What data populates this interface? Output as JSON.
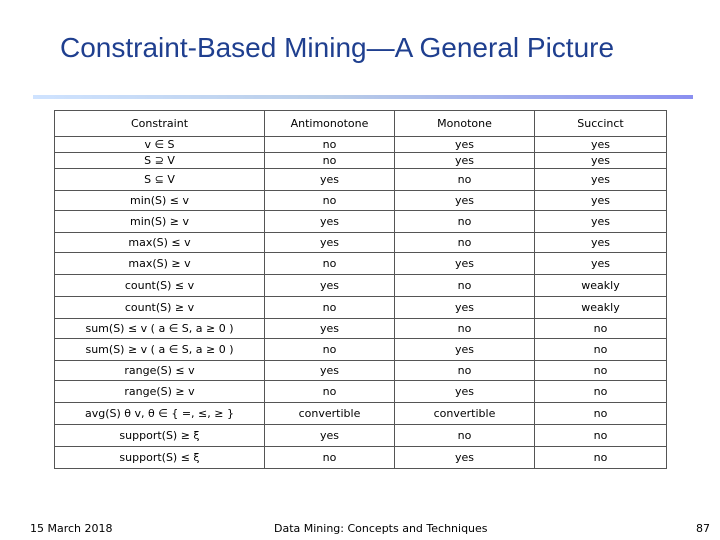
{
  "title": "Constraint-Based Mining—A General Picture",
  "table": {
    "headers": [
      "Constraint",
      "Antimonotone",
      "Monotone",
      "Succinct"
    ],
    "rows": [
      [
        "v ∈ S",
        "no",
        "yes",
        "yes"
      ],
      [
        "S ⊇ V",
        "no",
        "yes",
        "yes"
      ],
      [
        "S ⊆ V",
        "yes",
        "no",
        "yes"
      ],
      [
        "min(S) ≤ v",
        "no",
        "yes",
        "yes"
      ],
      [
        "min(S) ≥ v",
        "yes",
        "no",
        "yes"
      ],
      [
        "max(S) ≤ v",
        "yes",
        "no",
        "yes"
      ],
      [
        "max(S) ≥ v",
        "no",
        "yes",
        "yes"
      ],
      [
        "count(S) ≤ v",
        "yes",
        "no",
        "weakly"
      ],
      [
        "count(S) ≥ v",
        "no",
        "yes",
        "weakly"
      ],
      [
        "sum(S) ≤ v ( a ∈ S, a ≥ 0 )",
        "yes",
        "no",
        "no"
      ],
      [
        "sum(S) ≥ v ( a ∈ S, a ≥ 0 )",
        "no",
        "yes",
        "no"
      ],
      [
        "range(S) ≤ v",
        "yes",
        "no",
        "no"
      ],
      [
        "range(S) ≥ v",
        "no",
        "yes",
        "no"
      ],
      [
        "avg(S) θ v, θ ∈ { =, ≤, ≥ }",
        "convertible",
        "convertible",
        "no"
      ],
      [
        "support(S) ≥ ξ",
        "yes",
        "no",
        "no"
      ],
      [
        "support(S) ≤ ξ",
        "no",
        "yes",
        "no"
      ]
    ]
  },
  "footer": {
    "date": "15 March 2018",
    "course": "Data Mining: Concepts and Techniques",
    "page": "87"
  }
}
